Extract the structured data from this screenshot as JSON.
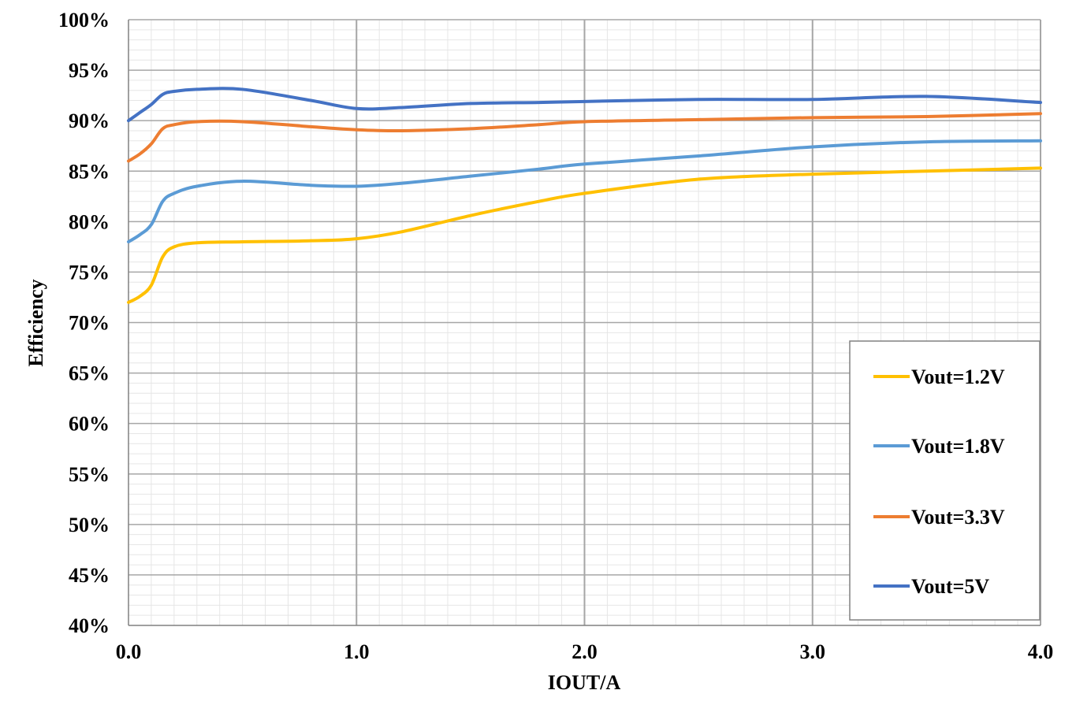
{
  "chart_data": {
    "type": "line",
    "xlabel": "IOUT/A",
    "ylabel": "Efficiency",
    "xlim": [
      0,
      4
    ],
    "ylim": [
      40,
      100
    ],
    "x_ticks": [
      0,
      1,
      2,
      3,
      4
    ],
    "x_tick_labels": [
      "0.0",
      "1.0",
      "2.0",
      "3.0",
      "4.0"
    ],
    "y_ticks": [
      40,
      45,
      50,
      55,
      60,
      65,
      70,
      75,
      80,
      85,
      90,
      95,
      100
    ],
    "y_tick_labels": [
      "40%",
      "45%",
      "50%",
      "55%",
      "60%",
      "65%",
      "70%",
      "75%",
      "80%",
      "85%",
      "90%",
      "95%",
      "100%"
    ],
    "grid": true,
    "legend_position": "bottom-right",
    "series": [
      {
        "name": "Vout=1.2V",
        "color": "#FFC000",
        "x": [
          0,
          0.05,
          0.1,
          0.15,
          0.2,
          0.3,
          0.5,
          0.8,
          1.0,
          1.2,
          1.5,
          1.8,
          2.0,
          2.5,
          3.0,
          3.5,
          4.0
        ],
        "y": [
          72.0,
          72.6,
          73.7,
          76.5,
          77.5,
          77.9,
          78.0,
          78.1,
          78.3,
          79.0,
          80.6,
          82.0,
          82.8,
          84.2,
          84.7,
          85.0,
          85.3
        ]
      },
      {
        "name": "Vout=1.8V",
        "color": "#5B9BD5",
        "x": [
          0,
          0.05,
          0.1,
          0.15,
          0.2,
          0.3,
          0.5,
          0.8,
          1.0,
          1.2,
          1.5,
          1.8,
          2.0,
          2.5,
          3.0,
          3.5,
          4.0
        ],
        "y": [
          78.0,
          78.7,
          79.7,
          82.0,
          82.8,
          83.5,
          84.0,
          83.6,
          83.5,
          83.8,
          84.5,
          85.2,
          85.7,
          86.5,
          87.4,
          87.9,
          88.0
        ]
      },
      {
        "name": "Vout=3.3V",
        "color": "#ED7D31",
        "x": [
          0,
          0.05,
          0.1,
          0.15,
          0.2,
          0.3,
          0.5,
          0.8,
          1.0,
          1.2,
          1.5,
          1.8,
          2.0,
          2.5,
          3.0,
          3.5,
          4.0
        ],
        "y": [
          86.0,
          86.7,
          87.7,
          89.2,
          89.6,
          89.9,
          89.9,
          89.4,
          89.1,
          89.0,
          89.2,
          89.6,
          89.9,
          90.1,
          90.3,
          90.4,
          90.7
        ]
      },
      {
        "name": "Vout=5V",
        "color": "#4472C4",
        "x": [
          0,
          0.05,
          0.1,
          0.15,
          0.2,
          0.3,
          0.5,
          0.8,
          1.0,
          1.2,
          1.5,
          1.8,
          2.0,
          2.5,
          3.0,
          3.5,
          4.0
        ],
        "y": [
          90.0,
          90.8,
          91.6,
          92.6,
          92.9,
          93.1,
          93.1,
          92.0,
          91.2,
          91.3,
          91.7,
          91.8,
          91.9,
          92.1,
          92.1,
          92.4,
          91.8
        ]
      }
    ]
  }
}
